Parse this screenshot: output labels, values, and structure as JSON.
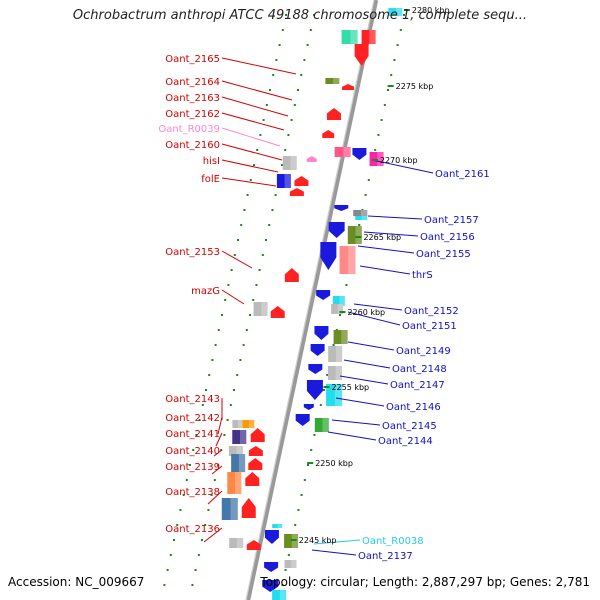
{
  "title": "Ochrobactrum anthropi ATCC 49188 chromosome 1, complete sequ...",
  "accession": "Accession: NC_009667",
  "topology": "Topology: circular; Length: 2,887,297 bp; Genes: 2,781",
  "colors": {
    "forward_label": "#d40000",
    "reverse_label": "#1010c8",
    "rna_label": "#ff88cc",
    "rna2_label": "#22ccee",
    "tick_green": "#1a8a1a",
    "backbone": "#888888"
  },
  "ticks": [
    {
      "label": "2280 kbp",
      "pos": 0
    },
    {
      "label": "2275 kbp",
      "pos": 1
    },
    {
      "label": "2270 kbp",
      "pos": 2
    },
    {
      "label": "2265 kbp",
      "pos": 3
    },
    {
      "label": "2260 kbp",
      "pos": 4
    },
    {
      "label": "2255 kbp",
      "pos": 5
    },
    {
      "label": "2250 kbp",
      "pos": 6
    },
    {
      "label": "2245 kbp",
      "pos": 7
    }
  ],
  "left_labels": [
    {
      "text": "Oant_2165",
      "kind": "cds"
    },
    {
      "text": "Oant_2164",
      "kind": "cds"
    },
    {
      "text": "Oant_2163",
      "kind": "cds"
    },
    {
      "text": "Oant_2162",
      "kind": "cds"
    },
    {
      "text": "Oant_R0039",
      "kind": "rna"
    },
    {
      "text": "Oant_2160",
      "kind": "cds"
    },
    {
      "text": "hisI",
      "kind": "cds"
    },
    {
      "text": "folE",
      "kind": "cds"
    },
    {
      "text": "Oant_2153",
      "kind": "cds"
    },
    {
      "text": "mazG",
      "kind": "cds"
    },
    {
      "text": "Oant_2143",
      "kind": "cds"
    },
    {
      "text": "Oant_2142",
      "kind": "cds"
    },
    {
      "text": "Oant_2141",
      "kind": "cds"
    },
    {
      "text": "Oant_2140",
      "kind": "cds"
    },
    {
      "text": "Oant_2139",
      "kind": "cds"
    },
    {
      "text": "Oant_2138",
      "kind": "cds"
    },
    {
      "text": "Oant_2136",
      "kind": "cds"
    }
  ],
  "right_labels": [
    {
      "text": "Oant_2161",
      "kind": "cds"
    },
    {
      "text": "Oant_2157",
      "kind": "cds"
    },
    {
      "text": "Oant_2156",
      "kind": "cds"
    },
    {
      "text": "Oant_2155",
      "kind": "cds"
    },
    {
      "text": "thrS",
      "kind": "cds"
    },
    {
      "text": "Oant_2152",
      "kind": "cds"
    },
    {
      "text": "Oant_2151",
      "kind": "cds"
    },
    {
      "text": "Oant_2149",
      "kind": "cds"
    },
    {
      "text": "Oant_2148",
      "kind": "cds"
    },
    {
      "text": "Oant_2147",
      "kind": "cds"
    },
    {
      "text": "Oant_2146",
      "kind": "cds"
    },
    {
      "text": "Oant_2145",
      "kind": "cds"
    },
    {
      "text": "Oant_2144",
      "kind": "cds"
    },
    {
      "text": "Oant_R0038",
      "kind": "rna"
    },
    {
      "text": "Oant_2137",
      "kind": "cds"
    }
  ]
}
